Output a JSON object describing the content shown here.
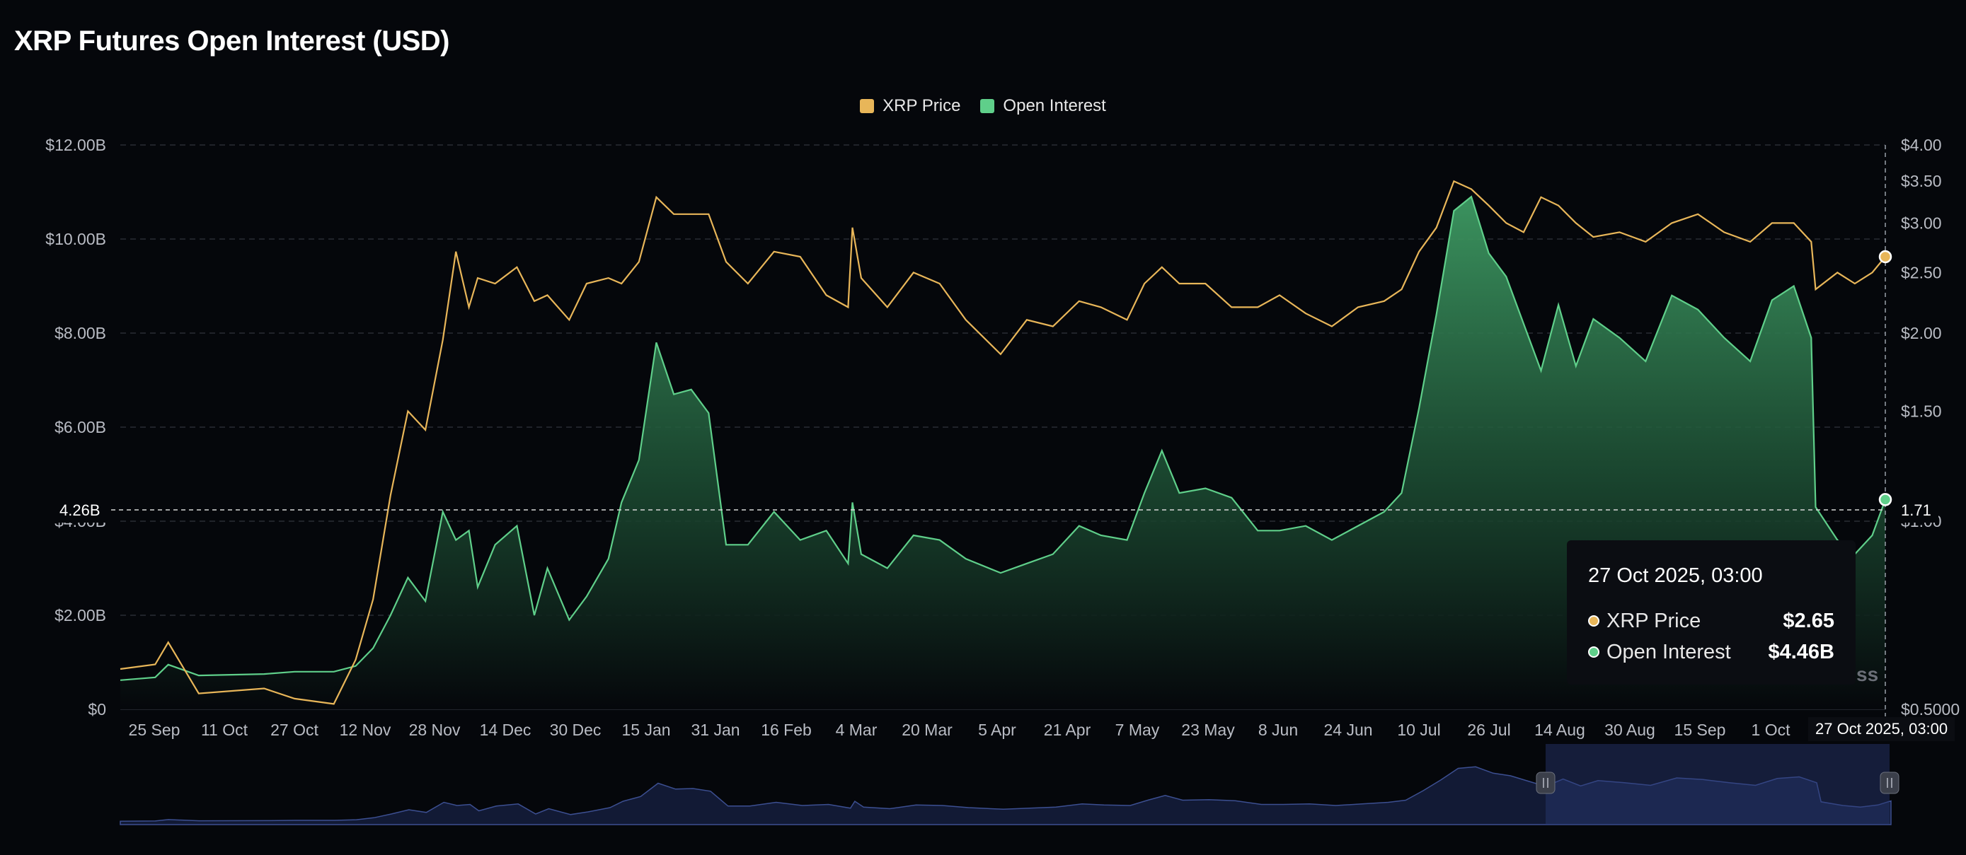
{
  "title": "XRP Futures Open Interest (USD)",
  "colors": {
    "background": "#05070b",
    "price": "#e8b659",
    "open_interest": "#5fcf8a",
    "navigator": "#2e3a6b"
  },
  "legend": [
    {
      "label": "XRP Price",
      "color": "#e8b659"
    },
    {
      "label": "Open Interest",
      "color": "#5fcf8a"
    }
  ],
  "crosshair": {
    "left_label": "4.26B",
    "right_label": "1.71",
    "x_label": "27 Oct 2025, 03:00"
  },
  "tooltip": {
    "title": "27 Oct 2025, 03:00",
    "rows": [
      {
        "label": "XRP Price",
        "value": "$2.65",
        "color": "#e8b659"
      },
      {
        "label": "Open Interest",
        "value": "$4.46B",
        "color": "#5fcf8a"
      }
    ]
  },
  "watermark": "ss",
  "chart_data": {
    "type": "area",
    "title": "XRP Futures Open Interest (USD)",
    "x_tick_labels": [
      "25 Sep",
      "11 Oct",
      "27 Oct",
      "12 Nov",
      "28 Nov",
      "14 Dec",
      "30 Dec",
      "15 Jan",
      "31 Jan",
      "16 Feb",
      "4 Mar",
      "20 Mar",
      "5 Apr",
      "21 Apr",
      "7 May",
      "23 May",
      "8 Jun",
      "24 Jun",
      "10 Jul",
      "26 Jul",
      "14 Aug",
      "30 Aug",
      "15 Sep",
      "1 Oct"
    ],
    "y_left": {
      "ticks": [
        "$0",
        "$2.00B",
        "$4.00B",
        "$6.00B",
        "$8.00B",
        "$10.00B",
        "$12.00B"
      ],
      "range": [
        0,
        12
      ]
    },
    "y_right": {
      "ticks": [
        "$0.5000",
        "$1.00",
        "$1.50",
        "$2.00",
        "$2.50",
        "$3.00",
        "$3.50",
        "$4.00"
      ],
      "range": [
        0.5,
        4.0
      ],
      "scale": "log"
    },
    "grid": true,
    "legend_position": "top-center",
    "series": [
      {
        "name": "Open Interest",
        "axis": "left",
        "unit": "USD billions",
        "points": [
          [
            "2024-09-17",
            0.62
          ],
          [
            "2024-09-25",
            0.68
          ],
          [
            "2024-09-28",
            0.95
          ],
          [
            "2024-10-05",
            0.72
          ],
          [
            "2024-10-20",
            0.75
          ],
          [
            "2024-10-27",
            0.8
          ],
          [
            "2024-11-05",
            0.8
          ],
          [
            "2024-11-10",
            0.92
          ],
          [
            "2024-11-14",
            1.3
          ],
          [
            "2024-11-18",
            2.0
          ],
          [
            "2024-11-22",
            2.8
          ],
          [
            "2024-11-26",
            2.3
          ],
          [
            "2024-11-30",
            4.2
          ],
          [
            "2024-12-03",
            3.6
          ],
          [
            "2024-12-06",
            3.8
          ],
          [
            "2024-12-08",
            2.6
          ],
          [
            "2024-12-12",
            3.5
          ],
          [
            "2024-12-17",
            3.9
          ],
          [
            "2024-12-21",
            2.0
          ],
          [
            "2024-12-24",
            3.0
          ],
          [
            "2024-12-29",
            1.9
          ],
          [
            "2025-01-02",
            2.4
          ],
          [
            "2025-01-07",
            3.2
          ],
          [
            "2025-01-10",
            4.4
          ],
          [
            "2025-01-14",
            5.3
          ],
          [
            "2025-01-18",
            7.8
          ],
          [
            "2025-01-22",
            6.7
          ],
          [
            "2025-01-26",
            6.8
          ],
          [
            "2025-01-30",
            6.3
          ],
          [
            "2025-02-03",
            3.5
          ],
          [
            "2025-02-08",
            3.5
          ],
          [
            "2025-02-14",
            4.2
          ],
          [
            "2025-02-20",
            3.6
          ],
          [
            "2025-02-26",
            3.8
          ],
          [
            "2025-03-03",
            3.1
          ],
          [
            "2025-03-04",
            4.4
          ],
          [
            "2025-03-06",
            3.3
          ],
          [
            "2025-03-12",
            3.0
          ],
          [
            "2025-03-18",
            3.7
          ],
          [
            "2025-03-24",
            3.6
          ],
          [
            "2025-03-30",
            3.2
          ],
          [
            "2025-04-07",
            2.9
          ],
          [
            "2025-04-13",
            3.1
          ],
          [
            "2025-04-19",
            3.3
          ],
          [
            "2025-04-25",
            3.9
          ],
          [
            "2025-04-30",
            3.7
          ],
          [
            "2025-05-06",
            3.6
          ],
          [
            "2025-05-10",
            4.6
          ],
          [
            "2025-05-14",
            5.5
          ],
          [
            "2025-05-18",
            4.6
          ],
          [
            "2025-05-24",
            4.7
          ],
          [
            "2025-05-30",
            4.5
          ],
          [
            "2025-06-05",
            3.8
          ],
          [
            "2025-06-10",
            3.8
          ],
          [
            "2025-06-16",
            3.9
          ],
          [
            "2025-06-22",
            3.6
          ],
          [
            "2025-06-28",
            3.9
          ],
          [
            "2025-07-04",
            4.2
          ],
          [
            "2025-07-08",
            4.6
          ],
          [
            "2025-07-12",
            6.4
          ],
          [
            "2025-07-16",
            8.4
          ],
          [
            "2025-07-20",
            10.6
          ],
          [
            "2025-07-24",
            10.9
          ],
          [
            "2025-07-28",
            9.7
          ],
          [
            "2025-08-01",
            9.2
          ],
          [
            "2025-08-05",
            8.2
          ],
          [
            "2025-08-09",
            7.2
          ],
          [
            "2025-08-13",
            8.6
          ],
          [
            "2025-08-17",
            7.3
          ],
          [
            "2025-08-21",
            8.3
          ],
          [
            "2025-08-27",
            7.9
          ],
          [
            "2025-09-02",
            7.4
          ],
          [
            "2025-09-08",
            8.8
          ],
          [
            "2025-09-14",
            8.5
          ],
          [
            "2025-09-20",
            7.9
          ],
          [
            "2025-09-26",
            7.4
          ],
          [
            "2025-10-01",
            8.7
          ],
          [
            "2025-10-06",
            9.0
          ],
          [
            "2025-10-10",
            7.9
          ],
          [
            "2025-10-11",
            4.3
          ],
          [
            "2025-10-16",
            3.6
          ],
          [
            "2025-10-20",
            3.3
          ],
          [
            "2025-10-24",
            3.7
          ],
          [
            "2025-10-27",
            4.46
          ]
        ]
      },
      {
        "name": "XRP Price",
        "axis": "right",
        "unit": "USD",
        "points": [
          [
            "2024-09-17",
            0.58
          ],
          [
            "2024-09-25",
            0.59
          ],
          [
            "2024-09-28",
            0.64
          ],
          [
            "2024-10-05",
            0.53
          ],
          [
            "2024-10-20",
            0.54
          ],
          [
            "2024-10-27",
            0.52
          ],
          [
            "2024-11-05",
            0.51
          ],
          [
            "2024-11-10",
            0.6
          ],
          [
            "2024-11-14",
            0.75
          ],
          [
            "2024-11-18",
            1.1
          ],
          [
            "2024-11-22",
            1.5
          ],
          [
            "2024-11-26",
            1.4
          ],
          [
            "2024-11-30",
            1.95
          ],
          [
            "2024-12-03",
            2.7
          ],
          [
            "2024-12-06",
            2.2
          ],
          [
            "2024-12-08",
            2.45
          ],
          [
            "2024-12-12",
            2.4
          ],
          [
            "2024-12-17",
            2.55
          ],
          [
            "2024-12-21",
            2.25
          ],
          [
            "2024-12-24",
            2.3
          ],
          [
            "2024-12-29",
            2.1
          ],
          [
            "2025-01-02",
            2.4
          ],
          [
            "2025-01-07",
            2.45
          ],
          [
            "2025-01-10",
            2.4
          ],
          [
            "2025-01-14",
            2.6
          ],
          [
            "2025-01-18",
            3.3
          ],
          [
            "2025-01-22",
            3.1
          ],
          [
            "2025-01-26",
            3.1
          ],
          [
            "2025-01-30",
            3.1
          ],
          [
            "2025-02-03",
            2.6
          ],
          [
            "2025-02-08",
            2.4
          ],
          [
            "2025-02-14",
            2.7
          ],
          [
            "2025-02-20",
            2.65
          ],
          [
            "2025-02-26",
            2.3
          ],
          [
            "2025-03-03",
            2.2
          ],
          [
            "2025-03-04",
            2.95
          ],
          [
            "2025-03-06",
            2.45
          ],
          [
            "2025-03-12",
            2.2
          ],
          [
            "2025-03-18",
            2.5
          ],
          [
            "2025-03-24",
            2.4
          ],
          [
            "2025-03-30",
            2.1
          ],
          [
            "2025-04-07",
            1.85
          ],
          [
            "2025-04-13",
            2.1
          ],
          [
            "2025-04-19",
            2.05
          ],
          [
            "2025-04-25",
            2.25
          ],
          [
            "2025-04-30",
            2.2
          ],
          [
            "2025-05-06",
            2.1
          ],
          [
            "2025-05-10",
            2.4
          ],
          [
            "2025-05-14",
            2.55
          ],
          [
            "2025-05-18",
            2.4
          ],
          [
            "2025-05-24",
            2.4
          ],
          [
            "2025-05-30",
            2.2
          ],
          [
            "2025-06-05",
            2.2
          ],
          [
            "2025-06-10",
            2.3
          ],
          [
            "2025-06-16",
            2.15
          ],
          [
            "2025-06-22",
            2.05
          ],
          [
            "2025-06-28",
            2.2
          ],
          [
            "2025-07-04",
            2.25
          ],
          [
            "2025-07-08",
            2.35
          ],
          [
            "2025-07-12",
            2.7
          ],
          [
            "2025-07-16",
            2.95
          ],
          [
            "2025-07-20",
            3.5
          ],
          [
            "2025-07-24",
            3.4
          ],
          [
            "2025-07-28",
            3.2
          ],
          [
            "2025-08-01",
            3.0
          ],
          [
            "2025-08-05",
            2.9
          ],
          [
            "2025-08-09",
            3.3
          ],
          [
            "2025-08-13",
            3.2
          ],
          [
            "2025-08-17",
            3.0
          ],
          [
            "2025-08-21",
            2.85
          ],
          [
            "2025-08-27",
            2.9
          ],
          [
            "2025-09-02",
            2.8
          ],
          [
            "2025-09-08",
            3.0
          ],
          [
            "2025-09-14",
            3.1
          ],
          [
            "2025-09-20",
            2.9
          ],
          [
            "2025-09-26",
            2.8
          ],
          [
            "2025-10-01",
            3.0
          ],
          [
            "2025-10-06",
            3.0
          ],
          [
            "2025-10-10",
            2.8
          ],
          [
            "2025-10-11",
            2.35
          ],
          [
            "2025-10-16",
            2.5
          ],
          [
            "2025-10-20",
            2.4
          ],
          [
            "2025-10-24",
            2.5
          ],
          [
            "2025-10-27",
            2.65
          ]
        ]
      }
    ]
  }
}
